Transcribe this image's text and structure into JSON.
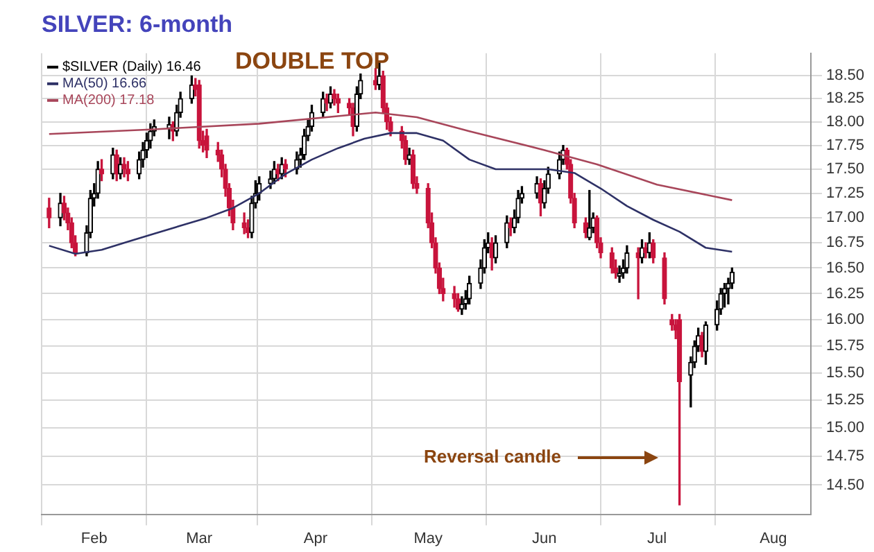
{
  "chart_data": {
    "type": "candlestick",
    "title": "SILVER: 6-month",
    "log": true,
    "grid": true,
    "legend": "top left",
    "xlim": [
      "--01-18",
      "--08-11"
    ],
    "xticks": [
      {
        "value": "--02-01",
        "label": "Feb"
      },
      {
        "value": "--03-01",
        "label": "Mar"
      },
      {
        "value": "--04-01",
        "label": "Apr"
      },
      {
        "value": "--05-01",
        "label": "May"
      },
      {
        "value": "--06-01",
        "label": "Jun"
      },
      {
        "value": "--07-01",
        "label": "Jul"
      },
      {
        "value": "--08-01",
        "label": "Aug"
      }
    ],
    "ylim": [
      14.25,
      18.75
    ],
    "yticks": [
      {
        "value": 14.5,
        "label": "14.50"
      },
      {
        "value": 14.75,
        "label": "14.75"
      },
      {
        "value": 15,
        "label": "15.00"
      },
      {
        "value": 15.25,
        "label": "15.25"
      },
      {
        "value": 15.5,
        "label": "15.50"
      },
      {
        "value": 15.75,
        "label": "15.75"
      },
      {
        "value": 16,
        "label": "16.00"
      },
      {
        "value": 16.25,
        "label": "16.25"
      },
      {
        "value": 16.5,
        "label": "16.50"
      },
      {
        "value": 16.75,
        "label": "16.75"
      },
      {
        "value": 17,
        "label": "17.00"
      },
      {
        "value": 17.25,
        "label": "17.25"
      },
      {
        "value": 17.5,
        "label": "17.50"
      },
      {
        "value": 17.75,
        "label": "17.75"
      },
      {
        "value": 18,
        "label": "18.00"
      },
      {
        "value": 18.25,
        "label": "18.25"
      },
      {
        "value": 18.5,
        "label": "18.50"
      }
    ],
    "annotations": [
      "DOUBLE TOP",
      "Reversal candle"
    ],
    "series": [
      {
        "type": "candlestick",
        "name": "$SILVER (Daily) 16.46",
        "colors": [
          "#c8143c",
          "#000000",
          "#c8143c",
          "#c8143c",
          "#c8143c",
          "#c8143c",
          "#000000",
          "#000000",
          "#000000",
          "#000000",
          "#c8143c",
          "#000000",
          "#c8143c",
          "#000000",
          "#c8143c",
          "#c8143c",
          "#000000",
          "#000000",
          "#000000",
          "#000000",
          "#000000",
          "#000000",
          "#c8143c",
          "#000000",
          "#000000",
          "#000000",
          "#c8143c",
          "#c8143c",
          "#c8143c",
          "#c8143c",
          "#c8143c",
          "#c8143c",
          "#c8143c",
          "#c8143c",
          "#c8143c",
          "#c8143c",
          "#c8143c",
          "#000000",
          "#000000",
          "#000000",
          "#000000",
          "#000000",
          "#c8143c",
          "#000000",
          "#c8143c",
          "#000000",
          "#000000",
          "#000000",
          "#000000",
          "#000000",
          "#000000",
          "#c8143c",
          "#000000",
          "#c8143c",
          "#c8143c",
          "#c8143c",
          "#c8143c",
          "#000000",
          "#000000",
          "#c8143c",
          "#000000",
          "#c8143c",
          "#c8143c",
          "#c8143c",
          "#c8143c",
          "#c8143c",
          "#000000",
          "#c8143c",
          "#c8143c",
          "#c8143c",
          "#c8143c",
          "#c8143c",
          "#c8143c",
          "#c8143c",
          "#c8143c",
          "#c8143c",
          "#000000",
          "#000000",
          "#000000",
          "#000000",
          "#000000",
          "#000000",
          "#c8143c",
          "#000000",
          "#000000",
          "#c8143c",
          "#000000",
          "#000000",
          "#000000",
          "#000000",
          "#c8143c",
          "#000000",
          "#000000",
          "#000000",
          "#000000",
          "#c8143c",
          "#c8143c",
          "#c8143c",
          "#c8143c",
          "#000000",
          "#000000",
          "#c8143c",
          "#c8143c",
          "#c8143c",
          "#c8143c",
          "#000000",
          "#000000",
          "#000000",
          "#c8143c",
          "#000000",
          "#c8143c",
          "#000000",
          "#c8143c",
          "#c8143c",
          "#c8143c",
          "#c8143c",
          "#c8143c",
          "#000000",
          "#000000",
          "#000000",
          "#c8143c",
          "#000000",
          "#000000",
          "#000000",
          "#000000",
          "#000000",
          "#000000"
        ],
        "x": [
          "--01-20",
          "--01-23",
          "--01-24",
          "--01-25",
          "--01-26",
          "--01-27",
          "--01-30",
          "--01-31",
          "--02-01",
          "--02-02",
          "--02-03",
          "--02-06",
          "--02-07",
          "--02-08",
          "--02-09",
          "--02-10",
          "--02-13",
          "--02-14",
          "--02-15",
          "--02-16",
          "--02-17",
          "--02-21",
          "--02-22",
          "--02-23",
          "--02-24",
          "--02-27",
          "--02-28",
          "--03-01",
          "--03-02",
          "--03-03",
          "--03-06",
          "--03-07",
          "--03-08",
          "--03-09",
          "--03-10",
          "--03-13",
          "--03-14",
          "--03-15",
          "--03-16",
          "--03-17",
          "--03-20",
          "--03-21",
          "--03-22",
          "--03-23",
          "--03-24",
          "--03-27",
          "--03-28",
          "--03-29",
          "--03-30",
          "--03-31",
          "--04-03",
          "--04-04",
          "--04-05",
          "--04-06",
          "--04-07",
          "--04-10",
          "--04-11",
          "--04-12",
          "--04-13",
          "--04-17",
          "--04-18",
          "--04-19",
          "--04-20",
          "--04-21",
          "--04-24",
          "--04-25",
          "--04-26",
          "--04-27",
          "--04-28",
          "--05-01",
          "--05-02",
          "--05-03",
          "--05-04",
          "--05-05",
          "--05-08",
          "--05-09",
          "--05-10",
          "--05-11",
          "--05-12",
          "--05-15",
          "--05-16",
          "--05-17",
          "--05-18",
          "--05-19",
          "--05-22",
          "--05-23",
          "--05-24",
          "--05-25",
          "--05-26",
          "--05-30",
          "--05-31",
          "--06-01",
          "--06-02",
          "--06-05",
          "--06-06",
          "--06-07",
          "--06-08",
          "--06-09",
          "--06-12",
          "--06-13",
          "--06-14",
          "--06-15",
          "--06-16",
          "--06-19",
          "--06-20",
          "--06-21",
          "--06-22",
          "--06-23",
          "--06-26",
          "--06-27",
          "--06-28",
          "--06-29",
          "--06-30",
          "--07-03",
          "--07-05",
          "--07-06",
          "--07-07",
          "--07-10",
          "--07-11",
          "--07-12",
          "--07-13",
          "--07-14",
          "--07-17",
          "--07-18",
          "--07-19",
          "--07-20",
          "--07-21"
        ],
        "ohlc": [
          [
            17.1,
            17.2,
            16.9,
            17.0
          ],
          [
            17.0,
            17.25,
            16.92,
            17.15
          ],
          [
            17.15,
            17.22,
            16.98,
            17.05
          ],
          [
            17.05,
            17.1,
            16.88,
            16.95
          ],
          [
            16.95,
            17.0,
            16.7,
            16.75
          ],
          [
            16.75,
            16.82,
            16.62,
            16.65
          ],
          [
            16.65,
            16.92,
            16.62,
            16.85
          ],
          [
            16.85,
            17.28,
            16.8,
            17.2
          ],
          [
            17.2,
            17.35,
            17.12,
            17.25
          ],
          [
            17.25,
            17.58,
            17.2,
            17.5
          ],
          [
            17.5,
            17.6,
            17.38,
            17.45
          ],
          [
            17.45,
            17.72,
            17.4,
            17.65
          ],
          [
            17.65,
            17.7,
            17.38,
            17.45
          ],
          [
            17.45,
            17.62,
            17.4,
            17.55
          ],
          [
            17.55,
            17.62,
            17.42,
            17.5
          ],
          [
            17.5,
            17.58,
            17.38,
            17.45
          ],
          [
            17.45,
            17.68,
            17.4,
            17.6
          ],
          [
            17.6,
            17.78,
            17.52,
            17.7
          ],
          [
            17.7,
            17.88,
            17.62,
            17.8
          ],
          [
            17.8,
            17.98,
            17.72,
            17.9
          ],
          [
            17.9,
            18.02,
            17.85,
            17.95
          ],
          [
            17.93,
            18.05,
            17.82,
            17.97
          ],
          [
            17.97,
            18.0,
            17.8,
            17.9
          ],
          [
            17.9,
            18.18,
            17.85,
            18.1
          ],
          [
            18.1,
            18.32,
            18.05,
            18.25
          ],
          [
            18.25,
            18.5,
            18.2,
            18.4
          ],
          [
            18.4,
            18.47,
            18.28,
            18.35
          ],
          [
            18.4,
            18.45,
            17.72,
            17.8
          ],
          [
            17.8,
            17.9,
            17.68,
            17.75
          ],
          [
            17.85,
            17.92,
            17.62,
            17.7
          ],
          [
            17.7,
            17.78,
            17.58,
            17.65
          ],
          [
            17.65,
            17.7,
            17.42,
            17.5
          ],
          [
            17.5,
            17.55,
            17.22,
            17.3
          ],
          [
            17.3,
            17.35,
            17.02,
            17.1
          ],
          [
            17.1,
            17.18,
            16.88,
            16.95
          ],
          [
            16.95,
            17.05,
            16.84,
            16.9
          ],
          [
            16.9,
            16.98,
            16.8,
            16.85
          ],
          [
            16.85,
            17.22,
            16.8,
            17.15
          ],
          [
            17.15,
            17.38,
            17.1,
            17.25
          ],
          [
            17.25,
            17.42,
            17.18,
            17.35
          ],
          [
            17.35,
            17.48,
            17.3,
            17.4
          ],
          [
            17.4,
            17.58,
            17.35,
            17.5
          ],
          [
            17.5,
            17.55,
            17.38,
            17.45
          ],
          [
            17.45,
            17.62,
            17.4,
            17.55
          ],
          [
            17.55,
            17.6,
            17.42,
            17.5
          ],
          [
            17.5,
            17.68,
            17.45,
            17.6
          ],
          [
            17.6,
            17.72,
            17.52,
            17.65
          ],
          [
            17.65,
            17.92,
            17.6,
            17.85
          ],
          [
            17.85,
            18.02,
            17.8,
            17.95
          ],
          [
            17.95,
            18.18,
            17.9,
            18.1
          ],
          [
            18.1,
            18.32,
            18.05,
            18.25
          ],
          [
            18.25,
            18.3,
            18.12,
            18.2
          ],
          [
            18.2,
            18.38,
            18.15,
            18.3
          ],
          [
            18.3,
            18.35,
            18.18,
            18.25
          ],
          [
            18.25,
            18.3,
            18.1,
            18.2
          ],
          [
            18.2,
            18.25,
            18.08,
            18.15
          ],
          [
            18.15,
            18.2,
            17.85,
            17.95
          ],
          [
            17.95,
            18.38,
            17.9,
            18.3
          ],
          [
            18.3,
            18.52,
            18.25,
            18.45
          ],
          [
            18.45,
            18.58,
            18.35,
            18.4
          ],
          [
            18.4,
            18.66,
            18.35,
            18.5
          ],
          [
            18.5,
            18.55,
            18.1,
            18.15
          ],
          [
            18.15,
            18.2,
            17.92,
            18.0
          ],
          [
            18.0,
            18.05,
            17.85,
            17.9
          ],
          [
            17.9,
            17.95,
            17.72,
            17.8
          ],
          [
            17.8,
            17.85,
            17.55,
            17.6
          ],
          [
            17.6,
            17.72,
            17.55,
            17.65
          ],
          [
            17.65,
            17.7,
            17.3,
            17.35
          ],
          [
            17.35,
            17.42,
            17.25,
            17.3
          ],
          [
            17.3,
            17.35,
            16.9,
            16.95
          ],
          [
            16.95,
            17.05,
            16.7,
            16.75
          ],
          [
            16.75,
            16.8,
            16.45,
            16.5
          ],
          [
            16.5,
            16.55,
            16.25,
            16.3
          ],
          [
            16.3,
            16.4,
            16.18,
            16.25
          ],
          [
            16.25,
            16.32,
            16.12,
            16.2
          ],
          [
            16.2,
            16.25,
            16.08,
            16.1
          ],
          [
            16.1,
            16.22,
            16.05,
            16.15
          ],
          [
            16.15,
            16.28,
            16.1,
            16.2
          ],
          [
            16.2,
            16.42,
            16.15,
            16.35
          ],
          [
            16.35,
            16.58,
            16.3,
            16.5
          ],
          [
            16.5,
            16.78,
            16.45,
            16.7
          ],
          [
            16.7,
            16.85,
            16.65,
            16.75
          ],
          [
            16.75,
            16.8,
            16.48,
            16.6
          ],
          [
            16.6,
            16.82,
            16.55,
            16.75
          ],
          [
            16.75,
            17.02,
            16.7,
            16.95
          ],
          [
            16.95,
            17.0,
            16.82,
            16.9
          ],
          [
            16.9,
            17.08,
            16.85,
            17.0
          ],
          [
            17.0,
            17.28,
            16.95,
            17.2
          ],
          [
            17.2,
            17.32,
            17.15,
            17.25
          ],
          [
            17.25,
            17.42,
            17.2,
            17.35
          ],
          [
            17.35,
            17.4,
            17.02,
            17.15
          ],
          [
            17.15,
            17.38,
            17.1,
            17.3
          ],
          [
            17.3,
            17.52,
            17.25,
            17.45
          ],
          [
            17.45,
            17.68,
            17.4,
            17.6
          ],
          [
            17.6,
            17.75,
            17.55,
            17.7
          ],
          [
            17.7,
            17.72,
            17.5,
            17.55
          ],
          [
            17.55,
            17.6,
            17.15,
            17.2
          ],
          [
            17.2,
            17.25,
            16.9,
            16.95
          ],
          [
            16.95,
            17.0,
            16.8,
            16.85
          ],
          [
            16.8,
            17.28,
            16.78,
            16.9
          ],
          [
            16.9,
            17.05,
            16.85,
            17.0
          ],
          [
            17.0,
            17.02,
            16.7,
            16.75
          ],
          [
            16.75,
            16.8,
            16.6,
            16.65
          ],
          [
            16.65,
            16.7,
            16.45,
            16.5
          ],
          [
            16.5,
            16.58,
            16.4,
            16.45
          ],
          [
            16.42,
            16.52,
            16.36,
            16.45
          ],
          [
            16.45,
            16.58,
            16.4,
            16.5
          ],
          [
            16.5,
            16.72,
            16.45,
            16.65
          ],
          [
            16.65,
            16.7,
            16.2,
            16.6
          ],
          [
            16.6,
            16.78,
            16.55,
            16.7
          ],
          [
            16.7,
            16.75,
            16.6,
            16.65
          ],
          [
            16.65,
            16.85,
            16.6,
            16.75
          ],
          [
            16.75,
            16.78,
            16.55,
            16.6
          ],
          [
            16.6,
            16.65,
            16.15,
            16.2
          ],
          [
            16.0,
            16.05,
            15.9,
            15.95
          ],
          [
            15.95,
            16.0,
            15.82,
            15.9
          ],
          [
            16.0,
            16.05,
            14.33,
            15.42
          ],
          [
            15.48,
            15.65,
            15.19,
            15.6
          ],
          [
            15.6,
            15.8,
            15.55,
            15.75
          ],
          [
            15.75,
            15.92,
            15.7,
            15.85
          ],
          [
            15.85,
            15.88,
            15.65,
            15.7
          ],
          [
            15.7,
            15.98,
            15.58,
            15.95
          ],
          [
            15.95,
            16.18,
            15.9,
            16.1
          ],
          [
            16.1,
            16.3,
            16.05,
            16.25
          ],
          [
            16.25,
            16.35,
            16.12,
            16.3
          ],
          [
            16.3,
            16.4,
            16.15,
            16.35
          ],
          [
            16.35,
            16.5,
            16.3,
            16.46
          ]
        ]
      },
      {
        "type": "line",
        "name": "MA(50) 16.66",
        "color": "#2e3166",
        "x": [
          "--01-20",
          "--01-27",
          "--02-03",
          "--02-10",
          "--02-17",
          "--02-24",
          "--03-03",
          "--03-10",
          "--03-17",
          "--03-24",
          "--03-31",
          "--04-07",
          "--04-14",
          "--04-21",
          "--04-28",
          "--05-05",
          "--05-12",
          "--05-19",
          "--05-26",
          "--06-02",
          "--06-09",
          "--06-16",
          "--06-23",
          "--06-30",
          "--07-07",
          "--07-14",
          "--07-21"
        ],
        "values": [
          16.72,
          16.64,
          16.68,
          16.76,
          16.84,
          16.92,
          17.0,
          17.1,
          17.25,
          17.45,
          17.6,
          17.72,
          17.82,
          17.88,
          17.88,
          17.8,
          17.6,
          17.5,
          17.5,
          17.5,
          17.46,
          17.3,
          17.12,
          16.98,
          16.86,
          16.7,
          16.66
        ]
      },
      {
        "type": "line",
        "name": "MA(200) 17.18",
        "color": "#a8465a",
        "x": [
          "--01-20",
          "--02-17",
          "--03-17",
          "--04-17",
          "--04-28",
          "--05-12",
          "--06-01",
          "--06-15",
          "--07-01",
          "--07-21"
        ],
        "values": [
          17.87,
          17.92,
          17.98,
          18.1,
          18.05,
          17.9,
          17.7,
          17.55,
          17.34,
          17.18
        ]
      }
    ]
  }
}
